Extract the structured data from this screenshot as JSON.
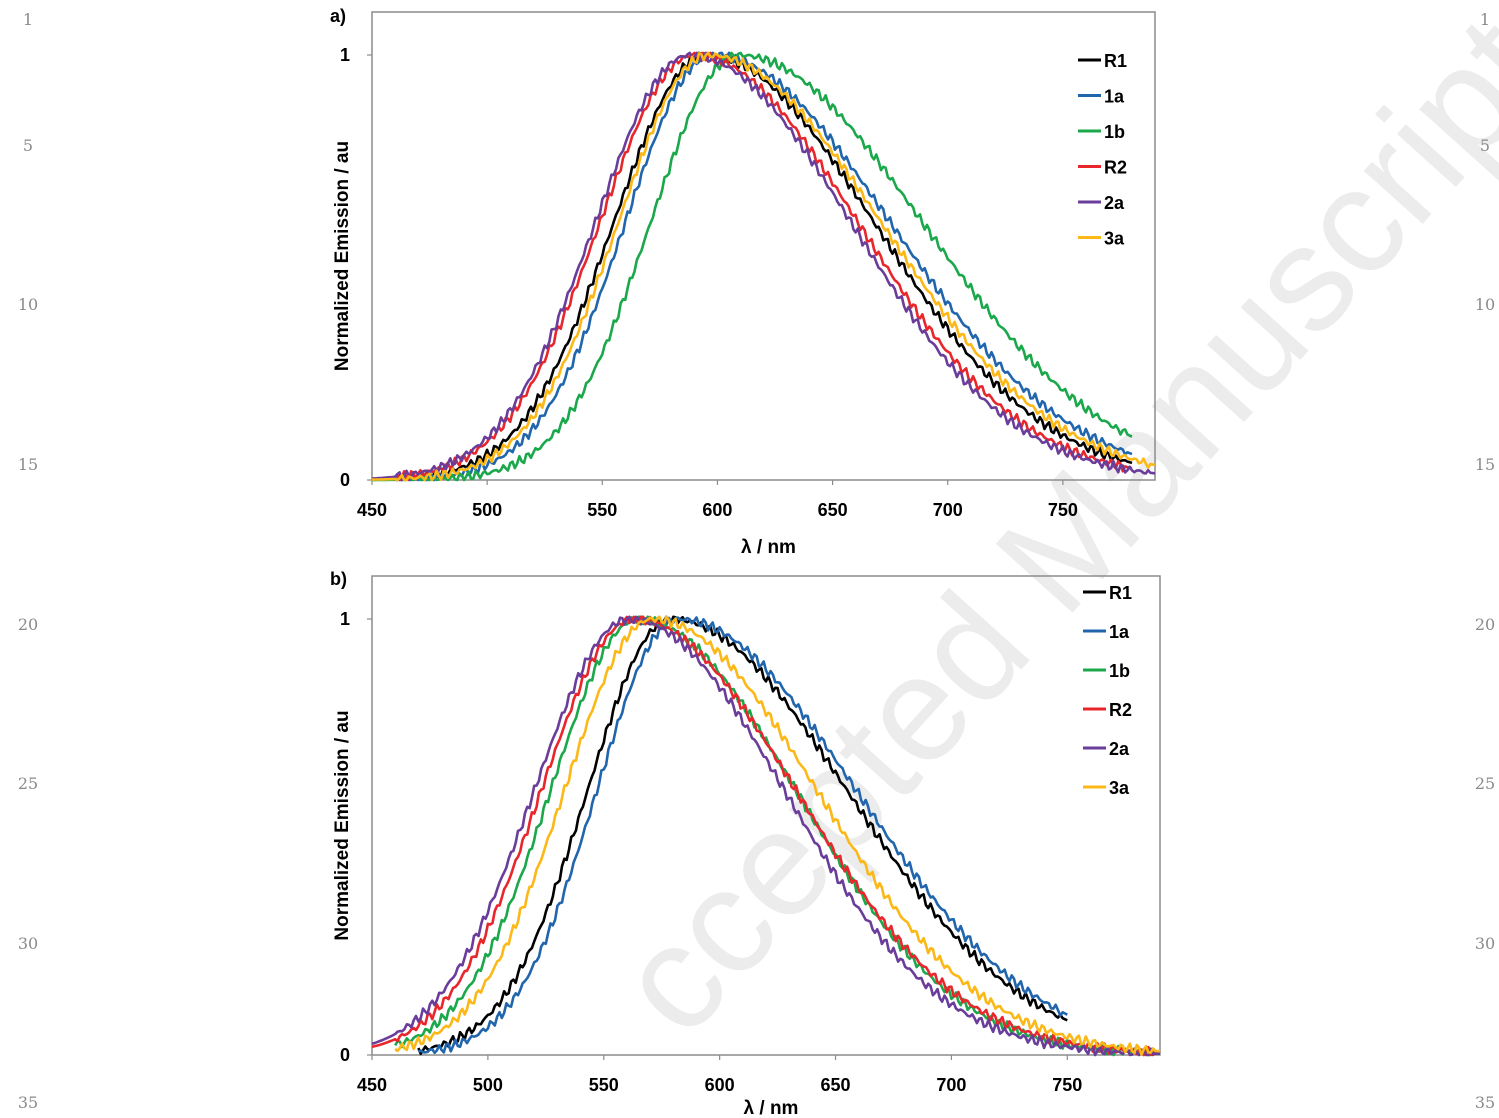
{
  "margin_numbers": [
    "1",
    "5",
    "10",
    "15",
    "20",
    "25",
    "30",
    "35"
  ],
  "watermark": "ccepted Manuscript",
  "colors": {
    "R1": "#000000",
    "1a": "#2166ac",
    "1b": "#1aa84b",
    "R2": "#e8262b",
    "2a": "#6a3d9a",
    "3a": "#fbb817"
  },
  "chart_data": [
    {
      "type": "line",
      "panel": "a)",
      "xlabel": "λ / nm",
      "ylabel": "Normalized Emission / au",
      "xlim": [
        450,
        790
      ],
      "ylim": [
        0,
        1.1
      ],
      "xticks": [
        "450",
        "500",
        "550",
        "600",
        "650",
        "700",
        "750"
      ],
      "yticks": [
        "0",
        "1"
      ],
      "legend_position": "top-right",
      "series": [
        {
          "name": "R1",
          "peak": 595,
          "sigma_left": 40,
          "sigma_right": 73,
          "x_start": 450,
          "x_end": 780,
          "x": [
            450,
            500,
            525,
            550,
            575,
            595,
            625,
            650,
            700,
            750,
            780
          ],
          "y": [
            0.0,
            0.05,
            0.24,
            0.58,
            0.91,
            1.0,
            0.86,
            0.71,
            0.39,
            0.19,
            0.1
          ]
        },
        {
          "name": "1a",
          "peak": 598,
          "sigma_left": 38,
          "sigma_right": 77,
          "x_start": 450,
          "x_end": 780,
          "x": [
            450,
            500,
            525,
            550,
            575,
            598,
            625,
            650,
            700,
            750,
            780
          ],
          "y": [
            0.0,
            0.03,
            0.17,
            0.48,
            0.85,
            1.0,
            0.88,
            0.74,
            0.42,
            0.22,
            0.12
          ]
        },
        {
          "name": "1b",
          "peak": 609,
          "sigma_left": 38,
          "sigma_right": 80,
          "x_start": 450,
          "x_end": 780,
          "x": [
            450,
            500,
            525,
            550,
            575,
            609,
            625,
            650,
            700,
            750,
            780
          ],
          "y": [
            0.0,
            0.02,
            0.09,
            0.3,
            0.65,
            1.0,
            0.95,
            0.85,
            0.54,
            0.29,
            0.15
          ]
        },
        {
          "name": "R2",
          "peak": 590,
          "sigma_left": 41,
          "sigma_right": 71,
          "x_start": 450,
          "x_end": 780,
          "x": [
            450,
            500,
            525,
            550,
            575,
            590,
            625,
            650,
            700,
            750,
            780
          ],
          "y": [
            0.0,
            0.06,
            0.28,
            0.62,
            0.93,
            1.0,
            0.83,
            0.69,
            0.38,
            0.18,
            0.09
          ]
        },
        {
          "name": "2a",
          "peak": 588,
          "sigma_left": 41,
          "sigma_right": 70,
          "x_start": 450,
          "x_end": 790,
          "x": [
            450,
            500,
            525,
            550,
            575,
            588,
            625,
            650,
            700,
            750,
            790
          ],
          "y": [
            0.0,
            0.06,
            0.28,
            0.63,
            0.95,
            1.0,
            0.81,
            0.67,
            0.36,
            0.17,
            0.08
          ]
        },
        {
          "name": "3a",
          "peak": 596,
          "sigma_left": 39,
          "sigma_right": 75,
          "x_start": 450,
          "x_end": 790,
          "x": [
            450,
            500,
            525,
            550,
            575,
            596,
            625,
            650,
            700,
            750,
            790
          ],
          "y": [
            0.0,
            0.04,
            0.21,
            0.54,
            0.89,
            1.0,
            0.87,
            0.72,
            0.4,
            0.21,
            0.09
          ]
        }
      ]
    },
    {
      "type": "line",
      "panel": "b)",
      "xlabel": "λ / nm",
      "ylabel": "Normalized Emission / au",
      "xlim": [
        450,
        790
      ],
      "ylim": [
        0,
        1.1
      ],
      "xticks": [
        "450",
        "500",
        "550",
        "600",
        "650",
        "700",
        "750"
      ],
      "yticks": [
        "0",
        "1"
      ],
      "legend_position": "top-right",
      "series": [
        {
          "name": "R1",
          "peak": 579,
          "sigma_left": 36,
          "sigma_right": 76,
          "x_start": 470,
          "x_end": 750,
          "x": [
            470,
            500,
            525,
            550,
            579,
            600,
            650,
            700,
            750
          ],
          "y": [
            0.01,
            0.08,
            0.35,
            0.75,
            1.0,
            0.96,
            0.67,
            0.34,
            0.14
          ]
        },
        {
          "name": "1a",
          "peak": 582,
          "sigma_left": 35,
          "sigma_right": 77,
          "x_start": 470,
          "x_end": 750,
          "x": [
            470,
            500,
            525,
            550,
            582,
            600,
            650,
            700,
            750
          ],
          "y": [
            0.01,
            0.06,
            0.28,
            0.68,
            1.0,
            0.97,
            0.69,
            0.35,
            0.14
          ]
        },
        {
          "name": "1b",
          "peak": 565,
          "sigma_left": 38,
          "sigma_right": 68,
          "x_start": 460,
          "x_end": 790,
          "x": [
            460,
            500,
            525,
            550,
            565,
            600,
            650,
            700,
            750,
            790
          ],
          "y": [
            0.01,
            0.16,
            0.5,
            0.88,
            1.0,
            0.86,
            0.56,
            0.26,
            0.11,
            0.04
          ]
        },
        {
          "name": "R2",
          "peak": 563,
          "sigma_left": 40,
          "sigma_right": 70,
          "x_start": 450,
          "x_end": 790,
          "x": [
            450,
            470,
            500,
            525,
            550,
            563,
            600,
            650,
            700,
            750,
            790
          ],
          "y": [
            0.02,
            0.02,
            0.2,
            0.56,
            0.9,
            1.0,
            0.86,
            0.57,
            0.28,
            0.12,
            0.04
          ]
        },
        {
          "name": "2a",
          "peak": 561,
          "sigma_left": 41,
          "sigma_right": 67,
          "x_start": 450,
          "x_end": 790,
          "x": [
            450,
            470,
            500,
            525,
            550,
            561,
            600,
            650,
            700,
            750,
            790
          ],
          "y": [
            0.0,
            0.03,
            0.2,
            0.57,
            0.92,
            1.0,
            0.83,
            0.53,
            0.26,
            0.1,
            0.04
          ]
        },
        {
          "name": "3a",
          "peak": 571,
          "sigma_left": 38,
          "sigma_right": 71,
          "x_start": 460,
          "x_end": 790,
          "x": [
            460,
            500,
            525,
            550,
            571,
            600,
            650,
            700,
            750,
            790
          ],
          "y": [
            0.01,
            0.12,
            0.42,
            0.8,
            1.0,
            0.91,
            0.61,
            0.3,
            0.12,
            0.05
          ]
        }
      ]
    }
  ]
}
